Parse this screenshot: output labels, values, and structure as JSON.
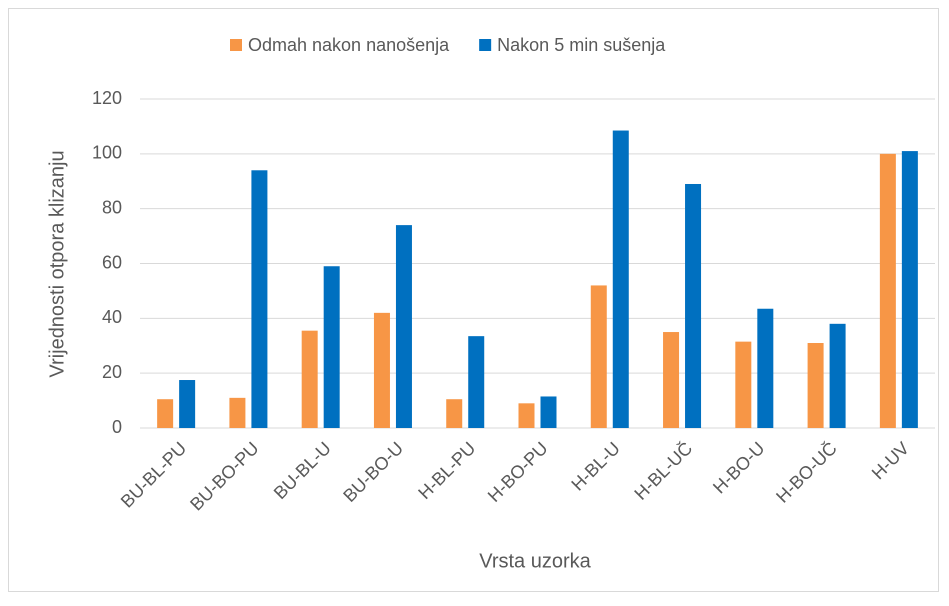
{
  "chart_data": {
    "type": "bar",
    "xlabel": "Vrsta uzorka",
    "ylabel": "Vrijednosti otpora klizanju",
    "categories": [
      "BU-BL-PU",
      "BU-BO-PU",
      "BU-BL-U",
      "BU-BO-U",
      "H-BL-PU",
      "H-BO-PU",
      "H-BL-U",
      "H-BL-UČ",
      "H-BO-U",
      "H-BO-UČ",
      "H-UV"
    ],
    "series": [
      {
        "name": "Odmah nakon nanošenja",
        "color": "#f79646",
        "values": [
          10.5,
          11,
          35.5,
          42,
          10.5,
          9,
          52,
          35,
          31.5,
          31,
          100
        ]
      },
      {
        "name": "Nakon 5 min sušenja",
        "color": "#0070c0",
        "values": [
          17.5,
          94,
          59,
          74,
          33.5,
          11.5,
          108.5,
          89,
          43.5,
          38,
          101
        ]
      }
    ],
    "ylim": [
      0,
      120
    ],
    "yticks": [
      0,
      20,
      40,
      60,
      80,
      100,
      120
    ],
    "grid": true,
    "legend": "top"
  }
}
